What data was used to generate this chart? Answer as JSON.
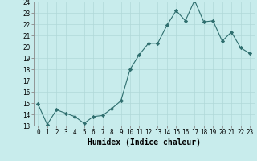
{
  "x": [
    0,
    1,
    2,
    3,
    4,
    5,
    6,
    7,
    8,
    9,
    10,
    11,
    12,
    13,
    14,
    15,
    16,
    17,
    18,
    19,
    20,
    21,
    22,
    23
  ],
  "y": [
    14.9,
    13.1,
    14.4,
    14.1,
    13.8,
    13.2,
    13.8,
    13.9,
    14.5,
    15.2,
    18.0,
    19.3,
    20.3,
    20.3,
    21.9,
    23.2,
    22.3,
    24.1,
    22.2,
    22.3,
    20.5,
    21.3,
    19.9,
    19.4
  ],
  "line_color": "#2e6e6e",
  "marker": "D",
  "marker_size": 2.2,
  "bg_color": "#c8ecec",
  "grid_color": "#b0d8d8",
  "xlabel": "Humidex (Indice chaleur)",
  "xlim": [
    -0.5,
    23.5
  ],
  "ylim": [
    13,
    24
  ],
  "xticks": [
    0,
    1,
    2,
    3,
    4,
    5,
    6,
    7,
    8,
    9,
    10,
    11,
    12,
    13,
    14,
    15,
    16,
    17,
    18,
    19,
    20,
    21,
    22,
    23
  ],
  "yticks": [
    13,
    14,
    15,
    16,
    17,
    18,
    19,
    20,
    21,
    22,
    23,
    24
  ],
  "tick_fontsize": 5.5,
  "xlabel_fontsize": 7.0,
  "linewidth": 0.8
}
